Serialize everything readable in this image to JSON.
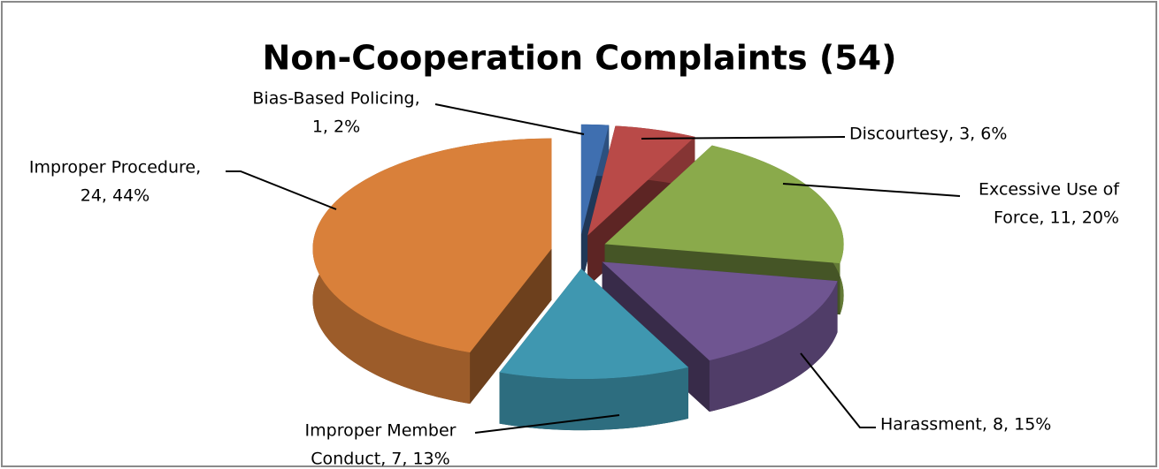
{
  "chart_data": {
    "type": "pie3d",
    "title": "Non-Cooperation Complaints (54)",
    "values": [
      1,
      3,
      11,
      8,
      7,
      24
    ],
    "value_labels": [
      [
        "Bias-Based Policing,",
        "1, 2%"
      ],
      [
        "Discourtesy, 3, 6%"
      ],
      [
        "Excessive Use of",
        "Force, 11, 20%"
      ],
      [
        "Harassment, 8, 15%"
      ],
      [
        "Improper Member",
        "Conduct, 7, 13%"
      ],
      [
        "Improper Procedure,",
        "24, 44%"
      ]
    ],
    "colors": [
      "#3f6fb0",
      "#b94a48",
      "#8aaa4b",
      "#6f5591",
      "#3f97b0",
      "#d9803a"
    ]
  }
}
